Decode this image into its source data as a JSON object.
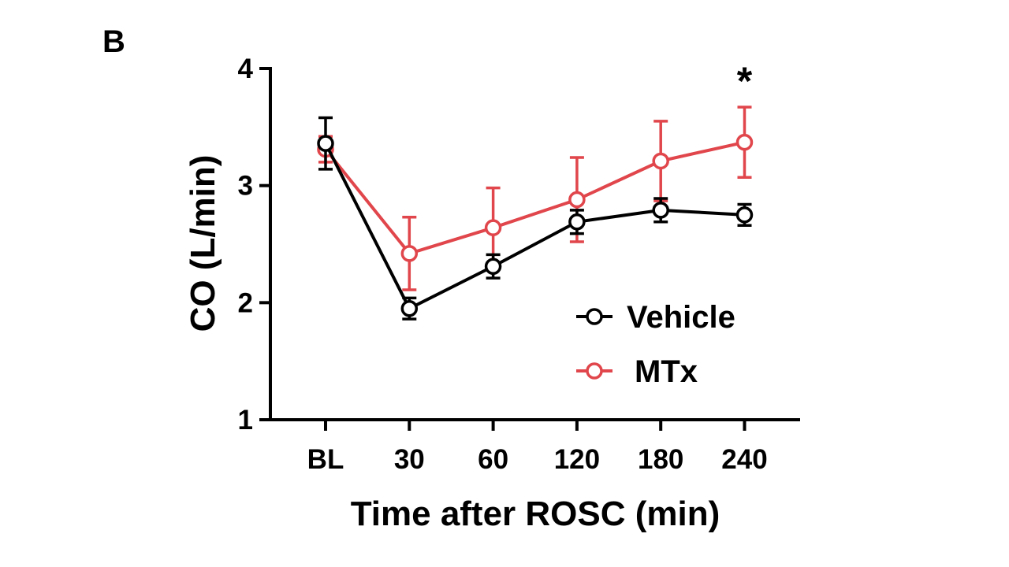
{
  "panel_label": "B",
  "chart_data": {
    "type": "line",
    "title": "",
    "xlabel": "Time after ROSC (min)",
    "ylabel": "CO (L/min)",
    "categories": [
      "BL",
      "30",
      "60",
      "120",
      "180",
      "240"
    ],
    "ylim": [
      1,
      4
    ],
    "yticks": [
      "1",
      "2",
      "3",
      "4"
    ],
    "grid": false,
    "legend_position": "bottom-right",
    "series": [
      {
        "name": "Vehicle",
        "color": "#000000",
        "marker": "open-circle",
        "values": [
          3.36,
          1.95,
          2.31,
          2.69,
          2.79,
          2.75
        ],
        "errors": [
          0.22,
          0.09,
          0.1,
          0.1,
          0.1,
          0.09
        ]
      },
      {
        "name": "MTx",
        "color": "#e0464b",
        "marker": "open-circle",
        "values": [
          3.31,
          2.42,
          2.64,
          2.88,
          3.21,
          3.37
        ],
        "errors": [
          0.11,
          0.31,
          0.34,
          0.36,
          0.34,
          0.3
        ]
      }
    ],
    "annotations": [
      {
        "text": "*",
        "category": "240",
        "note": "significance marker"
      }
    ]
  }
}
